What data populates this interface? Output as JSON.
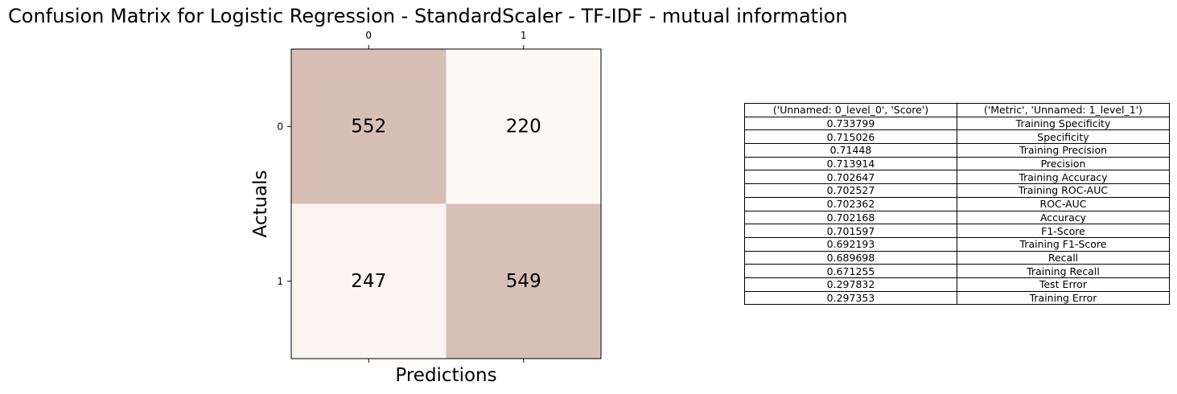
{
  "title": "Confusion Matrix for Logistic Regression - StandardScaler - TF-IDF - mutual information",
  "chart_data": [
    {
      "type": "heatmap",
      "xlabel": "Predictions",
      "ylabel": "Actuals",
      "x_ticks": [
        "0",
        "1"
      ],
      "y_ticks": [
        "0",
        "1"
      ],
      "x_tick_position": "top",
      "matrix": [
        [
          552,
          220
        ],
        [
          247,
          549
        ]
      ],
      "colors": {
        "high": "#d8bfb5",
        "low": "#fdfaf5"
      },
      "grid": false
    },
    {
      "type": "table",
      "header": [
        "('Unnamed: 0_level_0', 'Score')",
        "('Metric', 'Unnamed: 1_level_1')"
      ],
      "rows": [
        [
          "0.733799",
          "Training Specificity"
        ],
        [
          "0.715026",
          "Specificity"
        ],
        [
          "0.71448",
          "Training Precision"
        ],
        [
          "0.713914",
          "Precision"
        ],
        [
          "0.702647",
          "Training Accuracy"
        ],
        [
          "0.702527",
          "Training ROC-AUC"
        ],
        [
          "0.702362",
          "ROC-AUC"
        ],
        [
          "0.702168",
          "Accuracy"
        ],
        [
          "0.701597",
          "F1-Score"
        ],
        [
          "0.692193",
          "Training F1-Score"
        ],
        [
          "0.689698",
          "Recall"
        ],
        [
          "0.671255",
          "Training Recall"
        ],
        [
          "0.297832",
          "Test Error"
        ],
        [
          "0.297353",
          "Training Error"
        ]
      ]
    }
  ]
}
